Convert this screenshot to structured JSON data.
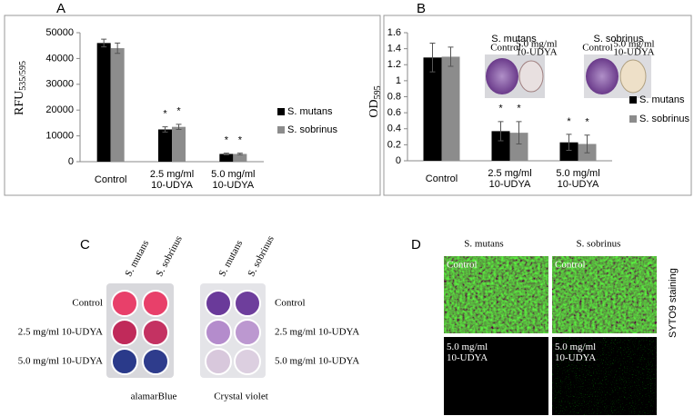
{
  "chart_data": [
    {
      "type": "bar",
      "panel": "A",
      "y_label": {
        "text": "RFU",
        "sub": "535/595"
      },
      "categories": [
        "Control",
        "2.5 mg/ml\n10-UDYA",
        "5.0 mg/ml\n10-UDYA"
      ],
      "series": [
        {
          "name": "S. mutans",
          "color": "#000000",
          "values": [
            46000,
            12500,
            3000
          ],
          "errors": [
            1500,
            1000,
            300
          ],
          "marks": [
            null,
            "*",
            "*"
          ]
        },
        {
          "name": "S. sobrinus",
          "color": "#8c8c8c",
          "values": [
            44000,
            13500,
            3000
          ],
          "errors": [
            2000,
            1000,
            300
          ],
          "marks": [
            null,
            "*",
            "*"
          ]
        }
      ],
      "ylim": [
        0,
        50000
      ],
      "yticks": [
        0,
        10000,
        20000,
        30000,
        40000,
        50000
      ]
    },
    {
      "type": "bar",
      "panel": "B",
      "y_label": {
        "text": "OD",
        "sub": "595"
      },
      "categories": [
        "Control",
        "2.5 mg/ml\n10-UDYA",
        "5.0 mg/ml\n10-UDYA"
      ],
      "series": [
        {
          "name": "S. mutans",
          "color": "#000000",
          "values": [
            1.29,
            0.37,
            0.23
          ],
          "errors": [
            0.18,
            0.12,
            0.1
          ],
          "marks": [
            null,
            "*",
            "*"
          ]
        },
        {
          "name": "S. sobrinus",
          "color": "#8c8c8c",
          "values": [
            1.3,
            0.35,
            0.21
          ],
          "errors": [
            0.12,
            0.14,
            0.11
          ],
          "marks": [
            null,
            "*",
            "*"
          ]
        }
      ],
      "ylim": [
        0,
        1.6
      ],
      "yticks": [
        0,
        0.2,
        0.4,
        0.6,
        0.8,
        1,
        1.2,
        1.4,
        1.6
      ],
      "insets": [
        {
          "title": "S. mutans",
          "left": "Control",
          "right": "5.0 mg/ml\n10-UDYA"
        },
        {
          "title": "S. sobrinus",
          "left": "Control",
          "right": "5.0 mg/ml\n10-UDYA"
        }
      ]
    }
  ],
  "panel_c": {
    "label": "C",
    "columns": [
      "S. mutans",
      "S. sobrinus"
    ],
    "rows": [
      "Control",
      "2.5 mg/ml 10-UDYA",
      "5.0 mg/ml 10-UDYA"
    ],
    "captions": [
      "alamarBlue",
      "Crystal violet"
    ]
  },
  "panel_d": {
    "label": "D",
    "columns": [
      "S. mutans",
      "S. sobrinus"
    ],
    "side_label": "SYTO9 staining",
    "tiles": [
      "Control",
      "Control",
      "5.0 mg/ml\n10-UDYA",
      "5.0 mg/ml\n10-UDYA"
    ]
  }
}
